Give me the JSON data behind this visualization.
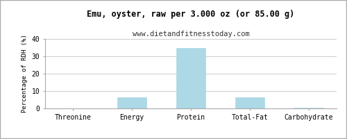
{
  "title": "Emu, oyster, raw per 3.000 oz (or 85.00 g)",
  "subtitle": "www.dietandfitnesstoday.com",
  "categories": [
    "Threonine",
    "Energy",
    "Protein",
    "Total-Fat",
    "Carbohydrate"
  ],
  "values": [
    0,
    6.5,
    35,
    6.3,
    0.5
  ],
  "bar_color": "#add8e6",
  "bar_edge_color": "#add8e6",
  "ylabel": "Percentage of RDH (%)",
  "ylim": [
    0,
    40
  ],
  "yticks": [
    0,
    10,
    20,
    30,
    40
  ],
  "background_color": "#ffffff",
  "plot_bg_color": "#ffffff",
  "title_fontsize": 8.5,
  "subtitle_fontsize": 7.5,
  "axis_label_fontsize": 6.5,
  "tick_fontsize": 7.0,
  "grid_color": "#cccccc",
  "border_color": "#aaaaaa"
}
